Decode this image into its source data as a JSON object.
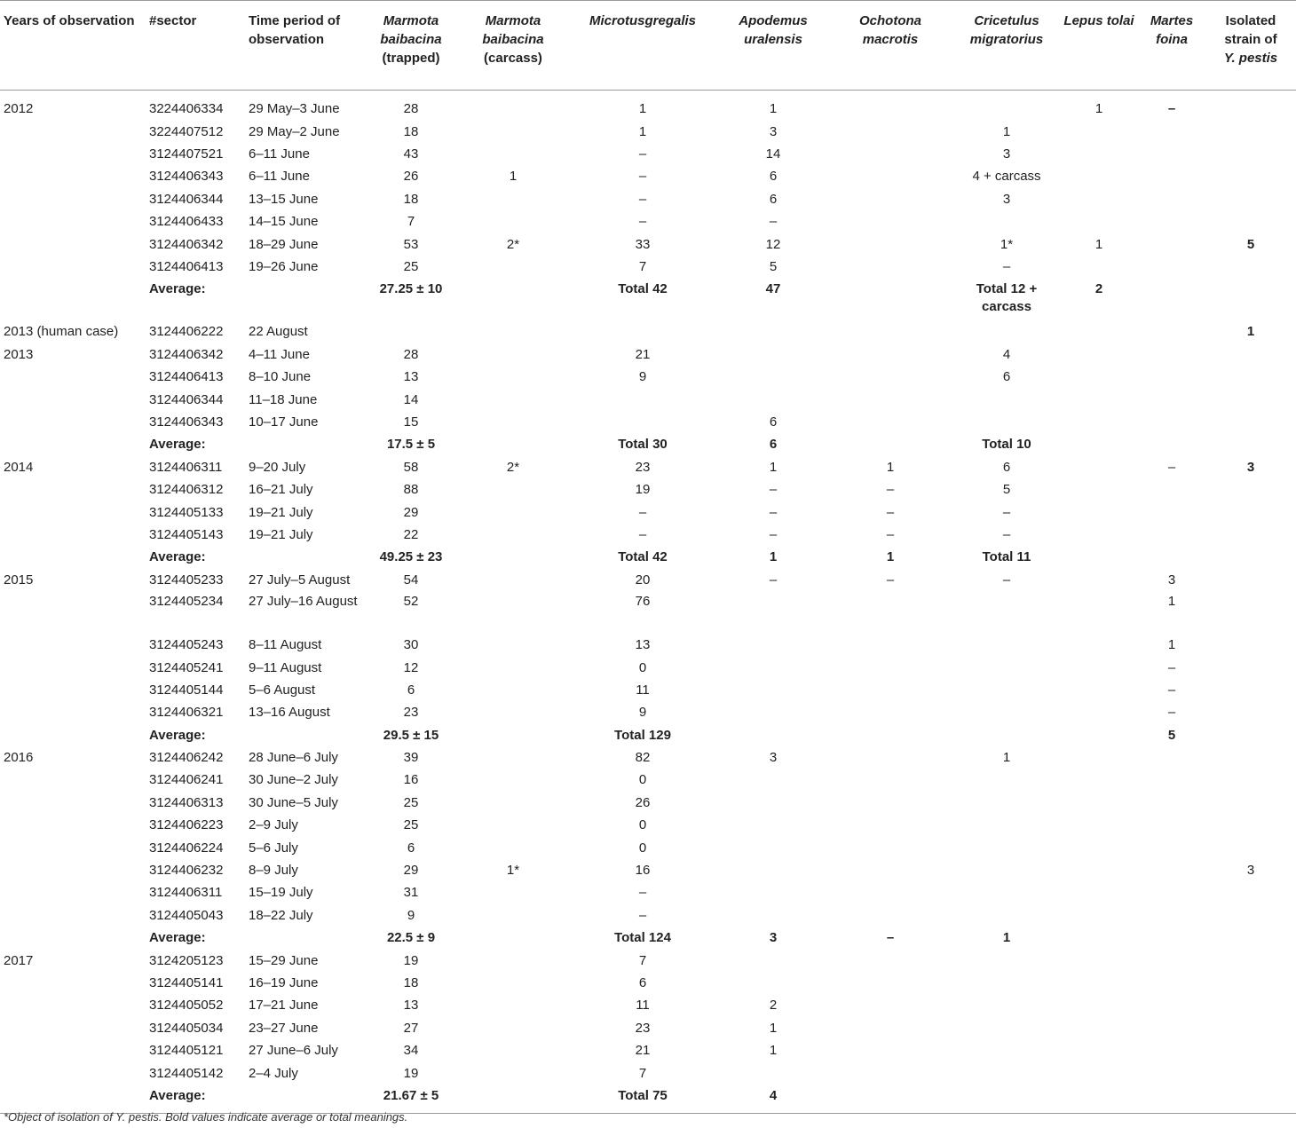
{
  "headers": [
    {
      "text": "Years of observation",
      "italic": false
    },
    {
      "text": "#sector",
      "italic": false
    },
    {
      "text": "Time period of observation",
      "italic": false
    },
    {
      "text": "Marmota baibacina",
      "suffix": "(trapped)",
      "italic": true
    },
    {
      "text": "Marmota baibacina",
      "suffix": "(carcass)",
      "italic": true
    },
    {
      "text": "Microtusgregalis",
      "italic": true
    },
    {
      "text": "Apodemus uralensis",
      "italic": true
    },
    {
      "text": "Ochotona macrotis",
      "italic": true
    },
    {
      "text": "Cricetulus migratorius",
      "italic": true
    },
    {
      "text": "Lepus tolai",
      "italic": true
    },
    {
      "text": "Martes foina",
      "italic": true
    },
    {
      "text": "Isolated strain of",
      "suffix": "Y. pestis",
      "italic": false
    }
  ],
  "rows": [
    {
      "year": "2012",
      "sector": "3224406334",
      "period": "29 May–3 June",
      "trapped": "28",
      "carcass": "",
      "microtus": "1",
      "apodemus": "1",
      "ochotona": "",
      "cricetulus": "",
      "lepus": "1",
      "martes": "–",
      "strain": "",
      "first": true,
      "martes_bold": true
    },
    {
      "year": "",
      "sector": "3224407512",
      "period": "29 May–2 June",
      "trapped": "18",
      "carcass": "",
      "microtus": "1",
      "apodemus": "3",
      "ochotona": "",
      "cricetulus": "1",
      "lepus": "",
      "martes": "",
      "strain": ""
    },
    {
      "year": "",
      "sector": "3124407521",
      "period": "6–11 June",
      "trapped": "43",
      "carcass": "",
      "microtus": "–",
      "apodemus": "14",
      "ochotona": "",
      "cricetulus": "3",
      "lepus": "",
      "martes": "",
      "strain": ""
    },
    {
      "year": "",
      "sector": "3124406343",
      "period": "6–11 June",
      "trapped": "26",
      "carcass": "1",
      "microtus": "–",
      "apodemus": "6",
      "ochotona": "",
      "cricetulus": "4 + carcass",
      "lepus": "",
      "martes": "",
      "strain": ""
    },
    {
      "year": "",
      "sector": "3124406344",
      "period": "13–15 June",
      "trapped": "18",
      "carcass": "",
      "microtus": "–",
      "apodemus": "6",
      "ochotona": "",
      "cricetulus": "3",
      "lepus": "",
      "martes": "",
      "strain": ""
    },
    {
      "year": "",
      "sector": "3124406433",
      "period": "14–15 June",
      "trapped": "7",
      "carcass": "",
      "microtus": "–",
      "apodemus": "–",
      "ochotona": "",
      "cricetulus": "",
      "lepus": "",
      "martes": "",
      "strain": ""
    },
    {
      "year": "",
      "sector": "3124406342",
      "period": "18–29 June",
      "trapped": "53",
      "carcass": "2*",
      "microtus": "33",
      "apodemus": "12",
      "ochotona": "",
      "cricetulus": "1*",
      "lepus": "1",
      "martes": "",
      "strain": "5",
      "strain_bold": true
    },
    {
      "year": "",
      "sector": "3124406413",
      "period": "19–26 June",
      "trapped": "25",
      "carcass": "",
      "microtus": "7",
      "apodemus": "5",
      "ochotona": "",
      "cricetulus": "–",
      "lepus": "",
      "martes": "",
      "strain": ""
    },
    {
      "year": "",
      "sector": "Average:",
      "period": "",
      "trapped": "27.25 ± 10",
      "carcass": "",
      "microtus": "Total 42",
      "apodemus": "47",
      "ochotona": "",
      "cricetulus": "Total 12 + carcass",
      "lepus": "2",
      "martes": "",
      "strain": "",
      "avg": true,
      "tall": true
    },
    {
      "year": "2013 (human case)",
      "sector": "3124406222",
      "period": "22 August",
      "trapped": "",
      "carcass": "",
      "microtus": "",
      "apodemus": "",
      "ochotona": "",
      "cricetulus": "",
      "lepus": "",
      "martes": "",
      "strain": "1",
      "strain_bold": true
    },
    {
      "year": "2013",
      "sector": "3124406342",
      "period": "4–11 June",
      "trapped": "28",
      "carcass": "",
      "microtus": "21",
      "apodemus": "",
      "ochotona": "",
      "cricetulus": "4",
      "lepus": "",
      "martes": "",
      "strain": ""
    },
    {
      "year": "",
      "sector": "3124406413",
      "period": "8–10 June",
      "trapped": "13",
      "carcass": "",
      "microtus": "9",
      "apodemus": "",
      "ochotona": "",
      "cricetulus": "6",
      "lepus": "",
      "martes": "",
      "strain": ""
    },
    {
      "year": "",
      "sector": "3124406344",
      "period": "11–18 June",
      "trapped": "14",
      "carcass": "",
      "microtus": "",
      "apodemus": "",
      "ochotona": "",
      "cricetulus": "",
      "lepus": "",
      "martes": "",
      "strain": ""
    },
    {
      "year": "",
      "sector": "3124406343",
      "period": "10–17 June",
      "trapped": "15",
      "carcass": "",
      "microtus": "",
      "apodemus": "6",
      "ochotona": "",
      "cricetulus": "",
      "lepus": "",
      "martes": "",
      "strain": ""
    },
    {
      "year": "",
      "sector": "Average:",
      "period": "",
      "trapped": "17.5 ± 5",
      "carcass": "",
      "microtus": "Total 30",
      "apodemus": "6",
      "ochotona": "",
      "cricetulus": "Total 10",
      "lepus": "",
      "martes": "",
      "strain": "",
      "avg": true
    },
    {
      "year": "2014",
      "sector": "3124406311",
      "period": "9–20 July",
      "trapped": "58",
      "carcass": "2*",
      "microtus": "23",
      "apodemus": "1",
      "ochotona": "1",
      "cricetulus": "6",
      "lepus": "",
      "martes": "–",
      "strain": "3",
      "strain_bold": true
    },
    {
      "year": "",
      "sector": "3124406312",
      "period": "16–21 July",
      "trapped": "88",
      "carcass": "",
      "microtus": "19",
      "apodemus": "–",
      "ochotona": "–",
      "cricetulus": "5",
      "lepus": "",
      "martes": "",
      "strain": ""
    },
    {
      "year": "",
      "sector": "3124405133",
      "period": "19–21 July",
      "trapped": "29",
      "carcass": "",
      "microtus": "–",
      "apodemus": "–",
      "ochotona": "–",
      "cricetulus": "–",
      "lepus": "",
      "martes": "",
      "strain": ""
    },
    {
      "year": "",
      "sector": "3124405143",
      "period": "19–21 July",
      "trapped": "22",
      "carcass": "",
      "microtus": "–",
      "apodemus": "–",
      "ochotona": "–",
      "cricetulus": "–",
      "lepus": "",
      "martes": "",
      "strain": ""
    },
    {
      "year": "",
      "sector": "Average:",
      "period": "",
      "trapped": "49.25 ± 23",
      "carcass": "",
      "microtus": "Total 42",
      "apodemus": "1",
      "ochotona": "1",
      "cricetulus": "Total 11",
      "lepus": "",
      "martes": "",
      "strain": "",
      "avg": true
    },
    {
      "year": "2015",
      "sector": "3124405233",
      "period": "27 July–5 August",
      "trapped": "54",
      "carcass": "",
      "microtus": "20",
      "apodemus": "–",
      "ochotona": "–",
      "cricetulus": "–",
      "lepus": "",
      "martes": "3",
      "strain": ""
    },
    {
      "year": "",
      "sector": "3124405234",
      "period": "27 July–16 August",
      "trapped": "52",
      "carcass": "",
      "microtus": "76",
      "apodemus": "",
      "ochotona": "",
      "cricetulus": "",
      "lepus": "",
      "martes": "1",
      "strain": "",
      "tall": true
    },
    {
      "year": "",
      "sector": "3124405243",
      "period": "8–11 August",
      "trapped": "30",
      "carcass": "",
      "microtus": "13",
      "apodemus": "",
      "ochotona": "",
      "cricetulus": "",
      "lepus": "",
      "martes": "1",
      "strain": ""
    },
    {
      "year": "",
      "sector": "3124405241",
      "period": "9–11 August",
      "trapped": "12",
      "carcass": "",
      "microtus": "0",
      "apodemus": "",
      "ochotona": "",
      "cricetulus": "",
      "lepus": "",
      "martes": "–",
      "strain": ""
    },
    {
      "year": "",
      "sector": "3124405144",
      "period": "5–6 August",
      "trapped": "6",
      "carcass": "",
      "microtus": "11",
      "apodemus": "",
      "ochotona": "",
      "cricetulus": "",
      "lepus": "",
      "martes": "–",
      "strain": ""
    },
    {
      "year": "",
      "sector": "3124406321",
      "period": "13–16 August",
      "trapped": "23",
      "carcass": "",
      "microtus": "9",
      "apodemus": "",
      "ochotona": "",
      "cricetulus": "",
      "lepus": "",
      "martes": "–",
      "strain": ""
    },
    {
      "year": "",
      "sector": "Average:",
      "period": "",
      "trapped": "29.5 ± 15",
      "carcass": "",
      "microtus": "Total 129",
      "apodemus": "",
      "ochotona": "",
      "cricetulus": "",
      "lepus": "",
      "martes": "5",
      "strain": "",
      "avg": true
    },
    {
      "year": "2016",
      "sector": "3124406242",
      "period": "28 June–6 July",
      "trapped": "39",
      "carcass": "",
      "microtus": "82",
      "apodemus": "3",
      "ochotona": "",
      "cricetulus": "1",
      "lepus": "",
      "martes": "",
      "strain": ""
    },
    {
      "year": "",
      "sector": "3124406241",
      "period": "30 June–2 July",
      "trapped": "16",
      "carcass": "",
      "microtus": "0",
      "apodemus": "",
      "ochotona": "",
      "cricetulus": "",
      "lepus": "",
      "martes": "",
      "strain": ""
    },
    {
      "year": "",
      "sector": "3124406313",
      "period": "30 June–5 July",
      "trapped": "25",
      "carcass": "",
      "microtus": "26",
      "apodemus": "",
      "ochotona": "",
      "cricetulus": "",
      "lepus": "",
      "martes": "",
      "strain": ""
    },
    {
      "year": "",
      "sector": "3124406223",
      "period": "2–9 July",
      "trapped": "25",
      "carcass": "",
      "microtus": "0",
      "apodemus": "",
      "ochotona": "",
      "cricetulus": "",
      "lepus": "",
      "martes": "",
      "strain": ""
    },
    {
      "year": "",
      "sector": "3124406224",
      "period": "5–6 July",
      "trapped": "6",
      "carcass": "",
      "microtus": "0",
      "apodemus": "",
      "ochotona": "",
      "cricetulus": "",
      "lepus": "",
      "martes": "",
      "strain": ""
    },
    {
      "year": "",
      "sector": "3124406232",
      "period": "8–9 July",
      "trapped": "29",
      "carcass": "1*",
      "microtus": "16",
      "apodemus": "",
      "ochotona": "",
      "cricetulus": "",
      "lepus": "",
      "martes": "",
      "strain": "3"
    },
    {
      "year": "",
      "sector": "3124406311",
      "period": "15–19 July",
      "trapped": "31",
      "carcass": "",
      "microtus": "–",
      "apodemus": "",
      "ochotona": "",
      "cricetulus": "",
      "lepus": "",
      "martes": "",
      "strain": ""
    },
    {
      "year": "",
      "sector": "3124405043",
      "period": "18–22 July",
      "trapped": "9",
      "carcass": "",
      "microtus": "–",
      "apodemus": "",
      "ochotona": "",
      "cricetulus": "",
      "lepus": "",
      "martes": "",
      "strain": ""
    },
    {
      "year": "",
      "sector": "Average:",
      "period": "",
      "trapped": "22.5 ± 9",
      "carcass": "",
      "microtus": "Total 124",
      "apodemus": "3",
      "ochotona": "–",
      "cricetulus": "1",
      "lepus": "",
      "martes": "",
      "strain": "",
      "avg": true
    },
    {
      "year": "2017",
      "sector": "3124205123",
      "period": "15–29 June",
      "trapped": "19",
      "carcass": "",
      "microtus": "7",
      "apodemus": "",
      "ochotona": "",
      "cricetulus": "",
      "lepus": "",
      "martes": "",
      "strain": ""
    },
    {
      "year": "",
      "sector": "3124405141",
      "period": "16–19 June",
      "trapped": "18",
      "carcass": "",
      "microtus": "6",
      "apodemus": "",
      "ochotona": "",
      "cricetulus": "",
      "lepus": "",
      "martes": "",
      "strain": ""
    },
    {
      "year": "",
      "sector": "3124405052",
      "period": "17–21 June",
      "trapped": "13",
      "carcass": "",
      "microtus": "11",
      "apodemus": "2",
      "ochotona": "",
      "cricetulus": "",
      "lepus": "",
      "martes": "",
      "strain": ""
    },
    {
      "year": "",
      "sector": "3124405034",
      "period": "23–27 June",
      "trapped": "27",
      "carcass": "",
      "microtus": "23",
      "apodemus": "1",
      "ochotona": "",
      "cricetulus": "",
      "lepus": "",
      "martes": "",
      "strain": ""
    },
    {
      "year": "",
      "sector": "3124405121",
      "period": "27 June–6 July",
      "trapped": "34",
      "carcass": "",
      "microtus": "21",
      "apodemus": "1",
      "ochotona": "",
      "cricetulus": "",
      "lepus": "",
      "martes": "",
      "strain": ""
    },
    {
      "year": "",
      "sector": "3124405142",
      "period": "2–4 July",
      "trapped": "19",
      "carcass": "",
      "microtus": "7",
      "apodemus": "",
      "ochotona": "",
      "cricetulus": "",
      "lepus": "",
      "martes": "",
      "strain": ""
    },
    {
      "year": "",
      "sector": "Average:",
      "period": "",
      "trapped": "21.67 ± 5",
      "carcass": "",
      "microtus": "Total 75",
      "apodemus": "4",
      "ochotona": "",
      "cricetulus": "",
      "lepus": "",
      "martes": "",
      "strain": "",
      "avg": true,
      "last": true
    }
  ],
  "footnote": "*Object of isolation of Y. pestis. Bold values indicate average or total meanings."
}
